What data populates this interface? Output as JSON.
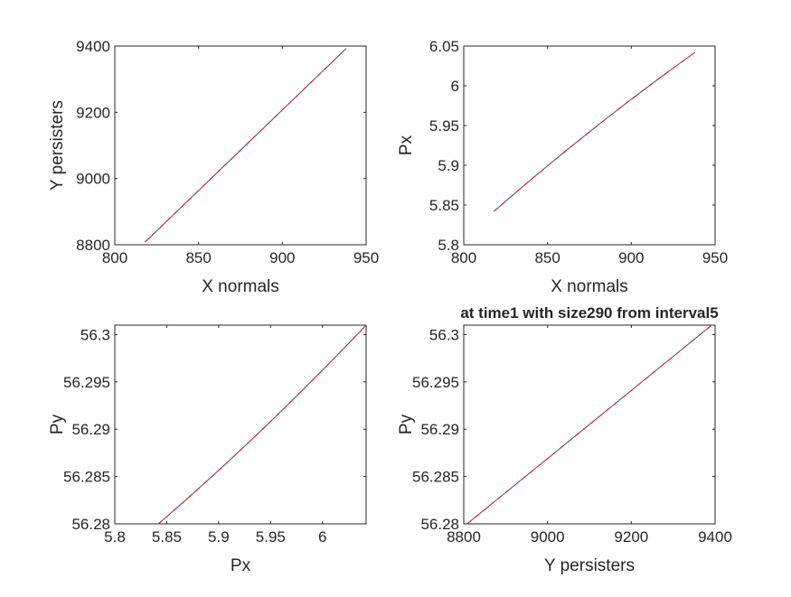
{
  "figure": {
    "background": "#ffffff",
    "axis_color": "#262626",
    "series_colors": [
      "#0072bd",
      "#ff0000"
    ]
  },
  "chart_data": [
    {
      "type": "line",
      "title": "",
      "xlabel": "X normals",
      "ylabel": "Y persisters",
      "xlim": [
        800,
        950
      ],
      "ylim": [
        8800,
        9400
      ],
      "xticks": [
        800,
        850,
        900,
        950
      ],
      "yticks": [
        8800,
        9000,
        9200,
        9400
      ],
      "xtick_labels": [
        "800",
        "850",
        "900",
        "950"
      ],
      "ytick_labels": [
        "8800",
        "9000",
        "9200",
        "9400"
      ],
      "grid": false,
      "series": [
        {
          "color": "#0072bd",
          "style": "solid",
          "x": [
            818,
            938
          ],
          "y": [
            8808,
            9392
          ],
          "curve": "linear"
        },
        {
          "color": "#ff0000",
          "style": "dashdot",
          "x": [
            818,
            938
          ],
          "y": [
            8808,
            9392
          ],
          "curve": "linear"
        }
      ]
    },
    {
      "type": "line",
      "title": "",
      "xlabel": "X normals",
      "ylabel": "Px",
      "xlim": [
        800,
        950
      ],
      "ylim": [
        5.8,
        6.05
      ],
      "xticks": [
        800,
        850,
        900,
        950
      ],
      "yticks": [
        5.8,
        5.85,
        5.9,
        5.95,
        6,
        6.05
      ],
      "xtick_labels": [
        "800",
        "850",
        "900",
        "950"
      ],
      "ytick_labels": [
        "5.8",
        "5.85",
        "5.9",
        "5.95",
        "6",
        "6.05"
      ],
      "grid": false,
      "series": [
        {
          "color": "#0072bd",
          "style": "solid",
          "x": [
            818,
            938
          ],
          "y": [
            5.842,
            6.042
          ],
          "curve": "concave"
        },
        {
          "color": "#ff0000",
          "style": "dashdot",
          "x": [
            818,
            938
          ],
          "y": [
            5.842,
            6.042
          ],
          "curve": "concave"
        }
      ]
    },
    {
      "type": "line",
      "title": "",
      "xlabel": "Px",
      "ylabel": "Py",
      "xlim": [
        5.8,
        6.042
      ],
      "ylim": [
        56.28,
        56.301
      ],
      "xticks": [
        5.8,
        5.85,
        5.9,
        5.95,
        6
      ],
      "yticks": [
        56.28,
        56.285,
        56.29,
        56.295,
        56.3
      ],
      "xtick_labels": [
        "5.8",
        "5.85",
        "5.9",
        "5.95",
        "6"
      ],
      "ytick_labels": [
        "56.28",
        "56.285",
        "56.29",
        "56.295",
        "56.3"
      ],
      "grid": false,
      "series": [
        {
          "color": "#0072bd",
          "style": "solid",
          "x": [
            5.842,
            6.042
          ],
          "y": [
            56.28,
            56.301
          ],
          "curve": "convex"
        },
        {
          "color": "#ff0000",
          "style": "dashdot",
          "x": [
            5.842,
            6.042
          ],
          "y": [
            56.28,
            56.301
          ],
          "curve": "convex"
        }
      ]
    },
    {
      "type": "line",
      "title": "at time1 with size290 from interval5",
      "xlabel": "Y persisters",
      "ylabel": "Py",
      "xlim": [
        8800,
        9400
      ],
      "ylim": [
        56.28,
        56.301
      ],
      "xticks": [
        8800,
        9000,
        9200,
        9400
      ],
      "yticks": [
        56.28,
        56.285,
        56.29,
        56.295,
        56.3
      ],
      "xtick_labels": [
        "8800",
        "9000",
        "9200",
        "9400"
      ],
      "ytick_labels": [
        "56.28",
        "56.285",
        "56.29",
        "56.295",
        "56.3"
      ],
      "grid": false,
      "series": [
        {
          "color": "#0072bd",
          "style": "solid",
          "x": [
            8808,
            9392
          ],
          "y": [
            56.28,
            56.301
          ],
          "curve": "linear"
        },
        {
          "color": "#ff0000",
          "style": "dashdot",
          "x": [
            8808,
            9392
          ],
          "y": [
            56.28,
            56.301
          ],
          "curve": "linear"
        }
      ]
    }
  ]
}
